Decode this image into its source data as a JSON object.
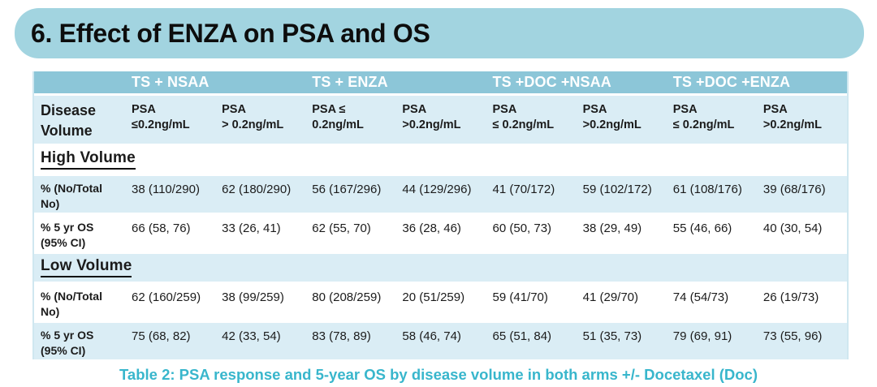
{
  "title": "6. Effect of ENZA on PSA and OS",
  "caption": "Table 2: PSA response and 5-year OS by disease volume in both arms +/- Docetaxel (Doc)",
  "colors": {
    "title_bar_bg": "#a2d4e0",
    "group_header_bg": "#8cc6d8",
    "row_blue": "#daedf5",
    "caption_color": "#38b6cc",
    "text_color": "#1b1b1b",
    "table_border": "#cfe7f0"
  },
  "table": {
    "corner": "Disease Volume",
    "group_headers": [
      "TS + NSAA",
      "TS + ENZA",
      "TS +DOC +NSAA",
      "TS +DOC +ENZA"
    ],
    "psa_headers": [
      {
        "l1": "PSA",
        "l2": "≤0.2ng/mL"
      },
      {
        "l1": "PSA",
        "l2": "> 0.2ng/mL"
      },
      {
        "l1": "PSA ≤",
        "l2": "0.2ng/mL"
      },
      {
        "l1": "PSA",
        "l2": ">0.2ng/mL"
      },
      {
        "l1": "PSA",
        "l2": "≤ 0.2ng/mL"
      },
      {
        "l1": "PSA >0.2ng/mL",
        "l2": ""
      },
      {
        "l1": "PSA",
        "l2": "≤ 0.2ng/mL"
      },
      {
        "l1": "PSA",
        "l2": ">0.2ng/mL"
      }
    ],
    "sections": [
      {
        "heading": "High Volume",
        "rows": [
          {
            "label": "% (No/Total No)",
            "values": [
              "38 (110/290)",
              "62 (180/290)",
              "56 (167/296)",
              "44 (129/296)",
              "41 (70/172)",
              "59 (102/172)",
              "61 (108/176)",
              "39 (68/176)"
            ]
          },
          {
            "label": "% 5 yr OS (95% CI)",
            "values": [
              "66 (58, 76)",
              "33 (26, 41)",
              "62 (55, 70)",
              "36 (28, 46)",
              "60 (50, 73)",
              "38 (29, 49)",
              "55 (46, 66)",
              "40 (30, 54)"
            ]
          }
        ]
      },
      {
        "heading": "Low Volume",
        "rows": [
          {
            "label": "% (No/Total No)",
            "values": [
              "62 (160/259)",
              "38 (99/259)",
              "80 (208/259)",
              "20 (51/259)",
              "59 (41/70)",
              "41 (29/70)",
              "74 (54/73)",
              "26 (19/73)"
            ]
          },
          {
            "label": "% 5 yr OS (95% CI)",
            "values": [
              "75 (68, 82)",
              "42 (33, 54)",
              "83 (78, 89)",
              "58 (46, 74)",
              "65 (51, 84)",
              "51 (35, 73)",
              "79 (69, 91)",
              "73 (55, 96)"
            ]
          }
        ]
      }
    ]
  }
}
